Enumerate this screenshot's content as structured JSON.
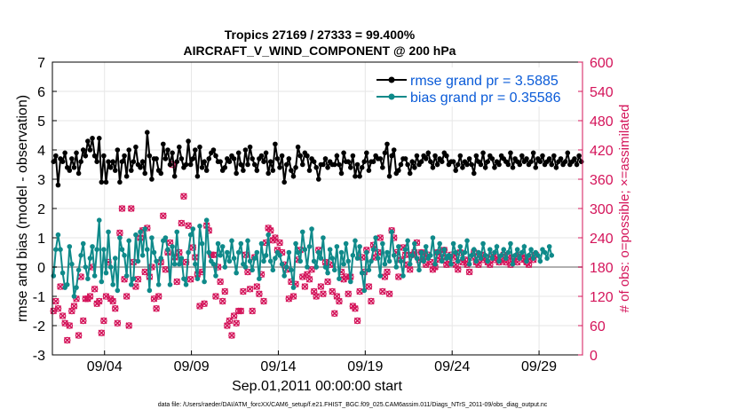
{
  "chart_data": {
    "type": "line",
    "title": "Tropics 27169 / 27333 = 99.400%",
    "subtitle": "AIRCRAFT_V_WIND_COMPONENT @ 200 hPa",
    "xlabel": "Sep.01,2011 00:00:00 start",
    "ylabel": "rmse and bias (model - observation)",
    "ylabel_right": "# of obs: o=possible; ×=assimilated",
    "ylim": [
      -3,
      7
    ],
    "ylim_right": [
      0,
      600
    ],
    "yticks": [
      "-3",
      "-2",
      "-1",
      "0",
      "1",
      "2",
      "3",
      "4",
      "5",
      "6",
      "7"
    ],
    "yticks_right": [
      "0",
      "60",
      "120",
      "180",
      "240",
      "300",
      "360",
      "420",
      "480",
      "540",
      "600"
    ],
    "xlim": [
      0,
      30.5
    ],
    "xticks": [
      {
        "x": 3,
        "label": "09/04"
      },
      {
        "x": 8,
        "label": "09/09"
      },
      {
        "x": 13,
        "label": "09/14"
      },
      {
        "x": 18,
        "label": "09/19"
      },
      {
        "x": 23,
        "label": "09/24"
      },
      {
        "x": 28,
        "label": "09/29"
      }
    ],
    "grid": true,
    "legend_position": "top-right",
    "footer": "data file: /Users/raeder/DAI/ATM_forcXX/CAM6_setup/f.e21.FHIST_BGC.f09_025.CAM6assim.011/Diags_NTrS_2011-09/obs_diag_output.nc",
    "colors": {
      "rmse": "#000000",
      "bias": "#0f8a8a",
      "obs": "#d4145a",
      "zero": "#b0b0b0"
    },
    "series": [
      {
        "name": "rmse grand pr = 3.5885",
        "axis": "left",
        "color": "#000000",
        "values": [
          3.6,
          3.8,
          2.8,
          3.7,
          3.6,
          3.9,
          3.4,
          3.3,
          3.7,
          3.4,
          3.9,
          3.2,
          3.6,
          4.0,
          3.8,
          4.3,
          4.0,
          4.4,
          3.8,
          3.6,
          4.4,
          2.9,
          3.8,
          2.9,
          3.6,
          3.4,
          3.6,
          3.3,
          4.0,
          2.9,
          3.6,
          3.8,
          3.1,
          4.0,
          3.3,
          3.6,
          4.1,
          3.5,
          3.4,
          3.6,
          3.2,
          4.6,
          3.8,
          3.0,
          3.7,
          3.7,
          3.3,
          3.2,
          4.2,
          3.7,
          4.0,
          3.5,
          3.9,
          3.1,
          3.6,
          4.1,
          3.7,
          3.4,
          3.5,
          4.3,
          3.5,
          3.7,
          4.0,
          3.1,
          4.1,
          3.4,
          3.6,
          3.3,
          3.7,
          3.9,
          4.0,
          3.8,
          3.6,
          3.6,
          3.3,
          3.4,
          3.7,
          3.6,
          3.8,
          3.7,
          3.2,
          3.9,
          3.5,
          3.3,
          4.0,
          3.5,
          4.1,
          3.7,
          3.5,
          3.3,
          3.7,
          3.8,
          3.6,
          3.9,
          3.2,
          3.6,
          3.3,
          4.2,
          3.7,
          3.4,
          3.8,
          2.9,
          3.5,
          3.7,
          3.3,
          3.1,
          3.4,
          4.1,
          3.8,
          3.5,
          3.9,
          3.8,
          3.3,
          3.7,
          3.6,
          3.4,
          3.0,
          3.5,
          3.5,
          3.7,
          3.4,
          3.6,
          3.5,
          3.5,
          3.8,
          3.5,
          3.2,
          3.9,
          3.6,
          3.6,
          3.4,
          3.8,
          3.1,
          3.5,
          3.1,
          3.4,
          3.6,
          3.9,
          3.3,
          3.6,
          3.6,
          3.8,
          3.7,
          3.7,
          3.4,
          3.9,
          4.2,
          3.1,
          3.8,
          4.0,
          3.2,
          3.3,
          3.5,
          3.7,
          3.7,
          3.5,
          3.2,
          3.6,
          3.4,
          3.8,
          3.5,
          3.6,
          3.8,
          3.7,
          3.9,
          3.6,
          3.4,
          3.8,
          3.5,
          3.7,
          3.6,
          3.9,
          3.8,
          3.5,
          3.6,
          3.6,
          3.3,
          3.5,
          3.8,
          3.4,
          3.6,
          3.5,
          3.7,
          3.5,
          3.2,
          3.8,
          3.6,
          3.5,
          3.9,
          3.4,
          3.6,
          3.8,
          3.7,
          3.4,
          3.6,
          3.5,
          3.8,
          3.7,
          3.6,
          3.5,
          3.9,
          3.4,
          3.7,
          3.6,
          3.5,
          3.8,
          3.6,
          3.7,
          3.5,
          3.6,
          3.9,
          3.4,
          3.7,
          3.6,
          3.8,
          3.5,
          3.6,
          3.7,
          3.5,
          3.8,
          3.4,
          3.6,
          3.7,
          3.5,
          3.6,
          3.9,
          3.5,
          3.6,
          3.7,
          3.5,
          3.8,
          3.6
        ]
      },
      {
        "name": "bias grand pr = 0.35586",
        "axis": "left",
        "color": "#0f8a8a",
        "values": [
          -0.3,
          0.6,
          1.1,
          0.6,
          -0.2,
          -0.7,
          -0.6,
          0.7,
          0.1,
          -1.0,
          -0.7,
          -0.1,
          0.4,
          0.8,
          0.0,
          -0.4,
          0.3,
          0.7,
          -0.3,
          0.6,
          1.6,
          -0.5,
          0.6,
          -0.2,
          1.2,
          0.0,
          -0.6,
          0.3,
          -0.8,
          1.0,
          0.6,
          0.4,
          -0.3,
          0.9,
          -0.6,
          -0.4,
          1.1,
          0.2,
          1.2,
          0.4,
          1.3,
          0.6,
          -0.8,
          1.0,
          0.5,
          0.2,
          -0.6,
          0.3,
          0.9,
          1.0,
          0.6,
          -0.6,
          0.7,
          0.1,
          1.2,
          0.1,
          0.3,
          -0.4,
          -0.6,
          0.5,
          1.1,
          1.3,
          0.1,
          -0.4,
          1.4,
          0.8,
          -0.5,
          1.6,
          0.5,
          0.2,
          0.1,
          -0.3,
          0.8,
          0.4,
          0.7,
          0.0,
          0.5,
          0.2,
          0.9,
          0.3,
          -0.2,
          0.5,
          0.8,
          0.1,
          0.0,
          0.9,
          0.2,
          -0.1,
          0.3,
          0.5,
          -0.4,
          0.8,
          0.2,
          0.4,
          1.1,
          0.2,
          -0.1,
          0.3,
          0.5,
          0.4,
          0.1,
          -0.3,
          0.0,
          0.5,
          -0.1,
          -0.7,
          0.8,
          0.5,
          0.2,
          1.2,
          0.6,
          0.0,
          0.7,
          1.3,
          0.2,
          0.0,
          0.5,
          0.3,
          1.0,
          0.0,
          -0.2,
          0.6,
          0.3,
          -0.1,
          0.7,
          -0.4,
          0.5,
          0.1,
          0.8,
          0.2,
          -0.5,
          0.4,
          0.9,
          0.3,
          0.7,
          -0.2,
          -0.8,
          0.5,
          -0.1,
          0.2,
          0.6,
          1.0,
          0.3,
          -0.3,
          0.8,
          0.1,
          0.5,
          0.2,
          1.2,
          0.4,
          0.0,
          0.7,
          0.2,
          -0.3,
          0.6,
          0.9,
          0.1,
          0.4,
          0.8,
          0.3,
          -0.1,
          0.5,
          0.2,
          0.7,
          0.3,
          0.4,
          1.0,
          0.1,
          0.5,
          0.8,
          0.2,
          0.6,
          0.3,
          0.4,
          0.1,
          0.8,
          0.5,
          0.2,
          0.7,
          0.3,
          0.5,
          0.9,
          0.1,
          0.4,
          0.6,
          0.2,
          0.5,
          0.3,
          0.8,
          0.4,
          0.2,
          0.6,
          0.3,
          0.5,
          0.7,
          0.2,
          0.4,
          0.6,
          0.3,
          0.5,
          0.8,
          0.1,
          0.4,
          0.6,
          0.3,
          0.5,
          0.7,
          0.2,
          0.4,
          0.6,
          0.3,
          0.5,
          0.4,
          0.2,
          0.6,
          0.5,
          0.3,
          0.7,
          0.4
        ]
      },
      {
        "name": "obs possible",
        "axis": "right",
        "color": "#d4145a",
        "marker": "o",
        "values": [
          90,
          110,
          95,
          140,
          80,
          65,
          30,
          60,
          90,
          100,
          115,
          40,
          160,
          70,
          115,
          115,
          120,
          180,
          135,
          105,
          110,
          45,
          70,
          120,
          190,
          115,
          110,
          95,
          65,
          250,
          300,
          155,
          120,
          60,
          300,
          190,
          140,
          155,
          240,
          255,
          170,
          260,
          160,
          180,
          115,
          95,
          120,
          190,
          285,
          175,
          210,
          230,
          390,
          200,
          150,
          210,
          270,
          325,
          190,
          265,
          155,
          220,
          200,
          165,
          100,
          170,
          105,
          265,
          255,
          205,
          205,
          120,
          180,
          150,
          110,
          130,
          60,
          70,
          40,
          80,
          65,
          90,
          90,
          130,
          205,
          170,
          135,
          90,
          200,
          140,
          125,
          165,
          110,
          230,
          260,
          255,
          235,
          240,
          215,
          230,
          210,
          185,
          175,
          115,
          150,
          120,
          145,
          195,
          215,
          160,
          140,
          165,
          155,
          175,
          130,
          120,
          215,
          140,
          125,
          190,
          150,
          185,
          130,
          85,
          120,
          110,
          170,
          155,
          160,
          125,
          160,
          100,
          95,
          70,
          130,
          200,
          170,
          215,
          140,
          110,
          225,
          200,
          210,
          240,
          130,
          160,
          170,
          125,
          255,
          240,
          210,
          160,
          195,
          220,
          205,
          185,
          175,
          205,
          210,
          230,
          195,
          210,
          200,
          185,
          205,
          190,
          175,
          180,
          210,
          195,
          200,
          215,
          185,
          190,
          205,
          200,
          185,
          175,
          210,
          190,
          195,
          185,
          170,
          200,
          210,
          190,
          185,
          205,
          195,
          200,
          190,
          185,
          205,
          195,
          200,
          190,
          195,
          205,
          190,
          200,
          185,
          195,
          200,
          190,
          205,
          200,
          195,
          190,
          185,
          200,
          195,
          205
        ]
      },
      {
        "name": "obs assimilated",
        "axis": "right",
        "color": "#d4145a",
        "marker": "x",
        "values": [
          90,
          110,
          95,
          140,
          80,
          65,
          30,
          60,
          90,
          100,
          115,
          40,
          160,
          70,
          115,
          115,
          120,
          180,
          135,
          105,
          110,
          45,
          70,
          120,
          190,
          115,
          110,
          95,
          65,
          250,
          300,
          155,
          120,
          60,
          300,
          190,
          140,
          155,
          240,
          255,
          170,
          260,
          160,
          180,
          115,
          95,
          120,
          190,
          285,
          175,
          210,
          230,
          390,
          200,
          150,
          210,
          270,
          325,
          190,
          265,
          155,
          220,
          200,
          165,
          100,
          170,
          105,
          265,
          255,
          205,
          205,
          120,
          180,
          150,
          110,
          130,
          60,
          70,
          40,
          80,
          65,
          90,
          90,
          130,
          205,
          170,
          135,
          90,
          200,
          140,
          125,
          165,
          110,
          230,
          260,
          255,
          235,
          240,
          215,
          230,
          210,
          185,
          175,
          115,
          150,
          120,
          145,
          195,
          215,
          160,
          140,
          165,
          155,
          175,
          130,
          120,
          215,
          140,
          125,
          190,
          150,
          185,
          130,
          85,
          120,
          110,
          170,
          155,
          160,
          125,
          160,
          100,
          95,
          70,
          130,
          200,
          170,
          215,
          140,
          110,
          225,
          200,
          210,
          240,
          130,
          160,
          170,
          125,
          255,
          240,
          210,
          160,
          195,
          220,
          205,
          185,
          175,
          205,
          210,
          230,
          195,
          210,
          200,
          185,
          205,
          190,
          175,
          180,
          210,
          195,
          200,
          215,
          185,
          190,
          205,
          200,
          185,
          175,
          210,
          190,
          195,
          185,
          170,
          200,
          210,
          190,
          185,
          205,
          195,
          200,
          190,
          185,
          205,
          195,
          200,
          190,
          195,
          205,
          190,
          200,
          185,
          195,
          200,
          190,
          205,
          200,
          195,
          190,
          185,
          200,
          195,
          205
        ]
      }
    ]
  }
}
